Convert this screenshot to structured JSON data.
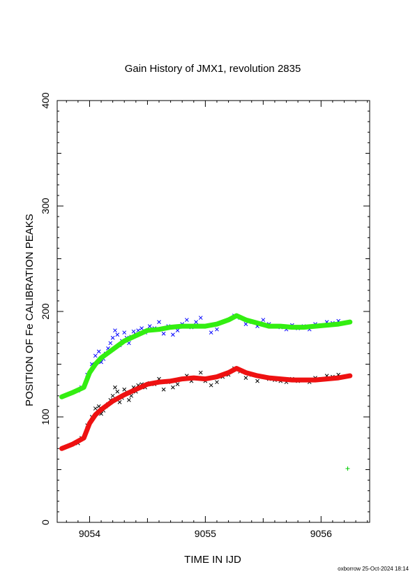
{
  "chart_data": {
    "type": "scatter",
    "title": "Gain History of JMX1, revolution 2835",
    "xlabel": "TIME IN IJD",
    "ylabel": "POSITION OF Fe CALIBRATION PEAKS",
    "xlim": [
      9053.72,
      9056.42
    ],
    "ylim": [
      0,
      400
    ],
    "xticks": [
      9054,
      9055,
      9056
    ],
    "yticks": [
      0,
      100,
      200,
      300,
      400
    ],
    "grid": false,
    "footer": "oxborrow 25-Oct-2024 18:14",
    "series": [
      {
        "marker": "x",
        "color": "#0000ff",
        "x": [
          9053.9,
          9053.93,
          9053.98,
          9054.02,
          9054.05,
          9054.08,
          9054.1,
          9054.12,
          9054.14,
          9054.16,
          9054.18,
          9054.2,
          9054.22,
          9054.24,
          9054.26,
          9054.28,
          9054.3,
          9054.32,
          9054.34,
          9054.36,
          9054.38,
          9054.4,
          9054.42,
          9054.45,
          9054.48,
          9054.52,
          9054.56,
          9054.6,
          9054.64,
          9054.68,
          9054.72,
          9054.76,
          9054.8,
          9054.84,
          9054.88,
          9054.92,
          9054.96,
          9055.0,
          9055.05,
          9055.1,
          9055.15,
          9055.2,
          9055.25,
          9055.3,
          9055.35,
          9055.4,
          9055.45,
          9055.5,
          9055.55,
          9055.6,
          9055.65,
          9055.7,
          9055.75,
          9055.8,
          9055.85,
          9055.9,
          9055.95,
          9056.0,
          9056.05,
          9056.1,
          9056.15,
          9056.2
        ],
        "y": [
          125,
          128,
          140,
          150,
          158,
          162,
          152,
          155,
          160,
          165,
          170,
          175,
          182,
          178,
          168,
          172,
          180,
          175,
          170,
          176,
          181,
          178,
          182,
          184,
          180,
          186,
          184,
          190,
          179,
          186,
          178,
          182,
          188,
          192,
          185,
          190,
          194,
          186,
          180,
          183,
          190,
          192,
          196,
          194,
          188,
          190,
          186,
          192,
          188,
          186,
          185,
          183,
          187,
          184,
          186,
          183,
          188,
          187,
          190,
          189,
          191,
          189
        ]
      },
      {
        "marker": "x",
        "color": "#000000",
        "x": [
          9053.9,
          9053.93,
          9053.98,
          9054.02,
          9054.05,
          9054.08,
          9054.1,
          9054.12,
          9054.14,
          9054.16,
          9054.18,
          9054.2,
          9054.22,
          9054.24,
          9054.26,
          9054.28,
          9054.3,
          9054.32,
          9054.34,
          9054.36,
          9054.38,
          9054.4,
          9054.42,
          9054.45,
          9054.48,
          9054.52,
          9054.56,
          9054.6,
          9054.64,
          9054.68,
          9054.72,
          9054.76,
          9054.8,
          9054.84,
          9054.88,
          9054.92,
          9054.96,
          9055.0,
          9055.05,
          9055.1,
          9055.15,
          9055.2,
          9055.25,
          9055.3,
          9055.35,
          9055.4,
          9055.45,
          9055.5,
          9055.55,
          9055.6,
          9055.65,
          9055.7,
          9055.75,
          9055.8,
          9055.85,
          9055.9,
          9055.95,
          9056.0,
          9056.05,
          9056.1,
          9056.15,
          9056.2
        ],
        "y": [
          75,
          80,
          92,
          100,
          108,
          110,
          103,
          106,
          110,
          112,
          116,
          120,
          128,
          124,
          114,
          118,
          126,
          122,
          116,
          120,
          128,
          124,
          130,
          131,
          128,
          132,
          131,
          136,
          126,
          133,
          128,
          131,
          136,
          139,
          134,
          137,
          142,
          134,
          130,
          133,
          138,
          140,
          146,
          143,
          137,
          140,
          134,
          138,
          136,
          135,
          134,
          133,
          136,
          134,
          135,
          133,
          137,
          136,
          139,
          138,
          140,
          138
        ]
      },
      {
        "marker": "+",
        "color": "#00cc00",
        "x": [
          9056.23
        ],
        "y": [
          51
        ]
      },
      {
        "marker": "line",
        "color": "#33ee11",
        "x": [
          9053.76,
          9053.85,
          9053.95,
          9054.0,
          9054.05,
          9054.1,
          9054.2,
          9054.3,
          9054.4,
          9054.5,
          9054.6,
          9054.7,
          9054.8,
          9054.9,
          9055.0,
          9055.1,
          9055.2,
          9055.27,
          9055.35,
          9055.45,
          9055.55,
          9055.65,
          9055.75,
          9055.85,
          9055.95,
          9056.05,
          9056.15,
          9056.25
        ],
        "y": [
          119,
          123,
          128,
          142,
          150,
          156,
          164,
          172,
          177,
          182,
          183,
          185,
          186,
          186,
          186,
          188,
          192,
          196,
          192,
          189,
          186,
          186,
          185,
          185,
          186,
          187,
          188,
          190
        ]
      },
      {
        "marker": "line",
        "color": "#ee1111",
        "x": [
          9053.76,
          9053.85,
          9053.95,
          9054.0,
          9054.05,
          9054.1,
          9054.2,
          9054.3,
          9054.4,
          9054.5,
          9054.6,
          9054.7,
          9054.8,
          9054.9,
          9055.0,
          9055.1,
          9055.2,
          9055.27,
          9055.35,
          9055.45,
          9055.55,
          9055.65,
          9055.75,
          9055.85,
          9055.95,
          9056.05,
          9056.15,
          9056.25
        ],
        "y": [
          70,
          74,
          80,
          94,
          102,
          107,
          115,
          121,
          126,
          131,
          133,
          134,
          136,
          137,
          136,
          138,
          142,
          146,
          142,
          139,
          137,
          136,
          135,
          135,
          135,
          136,
          137,
          139
        ]
      }
    ]
  }
}
